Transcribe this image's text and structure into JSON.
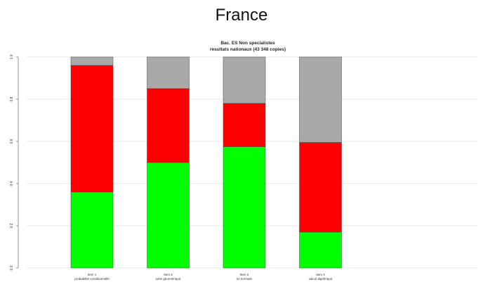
{
  "page": {
    "title": "France"
  },
  "chart_data": {
    "type": "bar",
    "stacked": true,
    "title": "Bac. ES Non specialistes",
    "subtitle": "resultats nationaux (43 348 copies)",
    "categories": [
      {
        "name": "Item 1",
        "sub": "probabilite conditionnelle"
      },
      {
        "name": "Item 2",
        "sub": "suite geometrique"
      },
      {
        "name": "Item 3",
        "sub": "loi normale"
      },
      {
        "name": "Item 4",
        "sub": "calcul algebrique"
      }
    ],
    "series": [
      {
        "color": "#00ff00",
        "values": [
          0.36,
          0.5,
          0.575,
          0.17
        ]
      },
      {
        "color": "#ff0000",
        "values": [
          0.6,
          0.35,
          0.205,
          0.425
        ]
      },
      {
        "color": "#a9a9a9",
        "values": [
          0.04,
          0.15,
          0.22,
          0.405
        ]
      }
    ],
    "ylim": [
      0,
      1
    ],
    "yticks": [
      "0.0",
      "0.2",
      "0.4",
      "0.6",
      "0.8",
      "1.0"
    ],
    "grid": true,
    "xlabel": "",
    "ylabel": ""
  }
}
